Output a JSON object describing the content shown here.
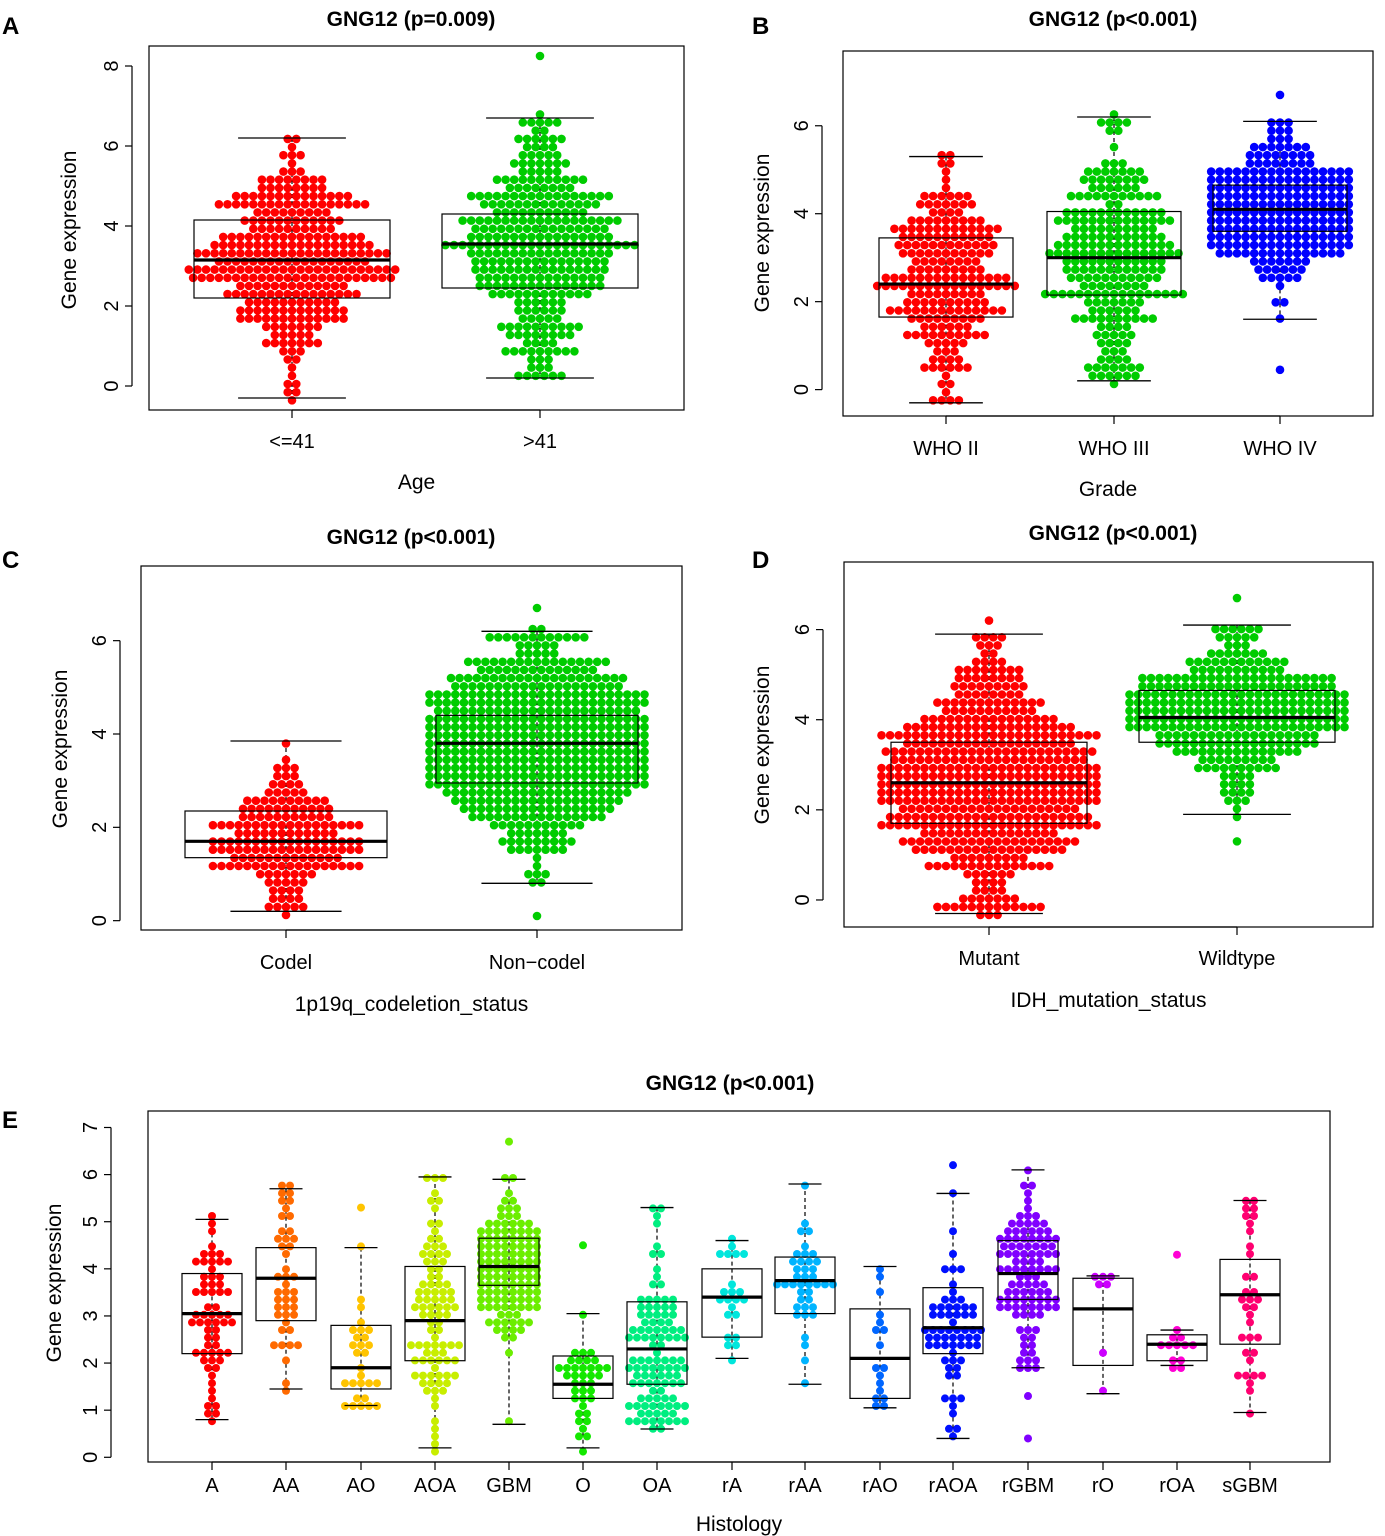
{
  "colors": {
    "red": "#ff0000",
    "green": "#00cc00",
    "blue": "#0000ff",
    "histology": [
      "#ff0000",
      "#ff6a00",
      "#ffc400",
      "#c8ee00",
      "#6cee00",
      "#14e800",
      "#00ee80",
      "#00e6dc",
      "#00b4ff",
      "#0066ff",
      "#0010ff",
      "#8000ff",
      "#cc00ff",
      "#ff00d4",
      "#ff0070"
    ]
  },
  "chart_data": [
    {
      "panel": "A",
      "type": "box-beeswarm",
      "title": "GNG12 (p=0.009)",
      "xlabel": "Age",
      "ylabel": "Gene expression",
      "ylim": [
        -0.6,
        8.5
      ],
      "yticks": [
        0,
        2,
        4,
        6,
        8
      ],
      "categories": [
        "<=41",
        ">41"
      ],
      "groups": [
        {
          "name": "<=41",
          "color": "red",
          "n": 310,
          "min": -0.3,
          "q1": 2.2,
          "median": 3.15,
          "q3": 4.15,
          "max": 6.2,
          "outliers": [],
          "band": [
            1.4,
            4.2
          ]
        },
        {
          "name": ">41",
          "color": "green",
          "n": 320,
          "min": 0.2,
          "q1": 2.45,
          "median": 3.55,
          "q3": 4.3,
          "max": 6.7,
          "outliers": [
            8.25
          ],
          "band": [
            1.6,
            4.35
          ]
        }
      ]
    },
    {
      "panel": "B",
      "type": "box-beeswarm",
      "title": "GNG12 (p<0.001)",
      "xlabel": "Grade",
      "ylabel": "Gene expression",
      "ylim": [
        -0.6,
        7.7
      ],
      "yticks": [
        0,
        2,
        4,
        6
      ],
      "categories": [
        "WHO II",
        "WHO III",
        "WHO IV"
      ],
      "groups": [
        {
          "name": "WHO II",
          "color": "red",
          "n": 215,
          "min": -0.3,
          "q1": 1.65,
          "median": 2.4,
          "q3": 3.45,
          "max": 5.3,
          "outliers": [],
          "band": [
            1.4,
            2.6
          ]
        },
        {
          "name": "WHO III",
          "color": "green",
          "n": 240,
          "min": 0.2,
          "q1": 2.15,
          "median": 3.0,
          "q3": 4.05,
          "max": 6.2,
          "outliers": [],
          "band": [
            1.5,
            4.1
          ]
        },
        {
          "name": "WHO IV",
          "color": "blue",
          "n": 320,
          "min": 1.6,
          "q1": 3.6,
          "median": 4.1,
          "q3": 4.65,
          "max": 6.1,
          "outliers": [
            6.7,
            0.45
          ],
          "band": [
            3.3,
            4.8
          ]
        }
      ]
    },
    {
      "panel": "C",
      "type": "box-beeswarm",
      "title": "GNG12 (p<0.001)",
      "xlabel": "1p19q_codeletion_status",
      "ylabel": "Gene expression",
      "ylim": [
        -0.2,
        7.6
      ],
      "yticks": [
        0,
        2,
        4,
        6
      ],
      "categories": [
        "Codel",
        "Non−codel"
      ],
      "groups": [
        {
          "name": "Codel",
          "color": "red",
          "n": 170,
          "min": 0.2,
          "q1": 1.35,
          "median": 1.7,
          "q3": 2.35,
          "max": 3.85,
          "outliers": [],
          "band": [
            1.4,
            1.8
          ]
        },
        {
          "name": "Non−codel",
          "color": "green",
          "n": 700,
          "min": 0.8,
          "q1": 2.95,
          "median": 3.8,
          "q3": 4.4,
          "max": 6.2,
          "outliers": [
            6.7,
            0.1
          ],
          "band": [
            2.9,
            4.4
          ]
        }
      ]
    },
    {
      "panel": "D",
      "type": "box-beeswarm",
      "title": "GNG12 (p<0.001)",
      "xlabel": "IDH_mutation_status",
      "ylabel": "Gene expression",
      "ylim": [
        -0.6,
        7.5
      ],
      "yticks": [
        0,
        2,
        4,
        6
      ],
      "categories": [
        "Mutant",
        "Wildtype"
      ],
      "groups": [
        {
          "name": "Mutant",
          "color": "red",
          "n": 560,
          "min": -0.3,
          "q1": 1.7,
          "median": 2.6,
          "q3": 3.5,
          "max": 5.9,
          "outliers": [
            6.2
          ],
          "band": [
            1.5,
            3.4
          ]
        },
        {
          "name": "Wildtype",
          "color": "green",
          "n": 330,
          "min": 1.9,
          "q1": 3.5,
          "median": 4.05,
          "q3": 4.65,
          "max": 6.1,
          "outliers": [
            6.7,
            1.3
          ],
          "band": [
            3.8,
            4.4
          ]
        }
      ]
    },
    {
      "panel": "E",
      "type": "box-beeswarm",
      "title": "GNG12 (p<0.001)",
      "xlabel": "Histology",
      "ylabel": "Gene expression",
      "ylim": [
        -0.1,
        7.35
      ],
      "yticks": [
        0,
        1,
        2,
        3,
        4,
        5,
        6,
        7
      ],
      "categories": [
        "A",
        "AA",
        "AO",
        "AOA",
        "GBM",
        "O",
        "OA",
        "rA",
        "rAA",
        "rAO",
        "rAOA",
        "rGBM",
        "rO",
        "rOA",
        "sGBM"
      ],
      "groups": [
        {
          "name": "A",
          "n": 60,
          "min": 0.8,
          "q1": 2.2,
          "median": 3.05,
          "q3": 3.9,
          "max": 5.05,
          "outliers": []
        },
        {
          "name": "AA",
          "n": 42,
          "min": 1.45,
          "q1": 2.9,
          "median": 3.8,
          "q3": 4.45,
          "max": 5.7,
          "outliers": []
        },
        {
          "name": "AO",
          "n": 26,
          "min": 1.1,
          "q1": 1.45,
          "median": 1.9,
          "q3": 2.8,
          "max": 4.45,
          "outliers": [
            5.3
          ]
        },
        {
          "name": "AOA",
          "n": 90,
          "min": 0.2,
          "q1": 2.05,
          "median": 2.9,
          "q3": 4.05,
          "max": 5.95,
          "outliers": []
        },
        {
          "name": "GBM",
          "n": 200,
          "min": 0.7,
          "q1": 3.65,
          "median": 4.05,
          "q3": 4.65,
          "max": 5.9,
          "outliers": [
            6.7
          ]
        },
        {
          "name": "O",
          "n": 36,
          "min": 0.2,
          "q1": 1.25,
          "median": 1.55,
          "q3": 2.15,
          "max": 3.05,
          "outliers": [
            4.5
          ]
        },
        {
          "name": "OA",
          "n": 105,
          "min": 0.6,
          "q1": 1.55,
          "median": 2.3,
          "q3": 3.3,
          "max": 5.3,
          "outliers": []
        },
        {
          "name": "rA",
          "n": 20,
          "min": 2.1,
          "q1": 2.55,
          "median": 3.4,
          "q3": 4.0,
          "max": 4.6,
          "outliers": []
        },
        {
          "name": "rAA",
          "n": 40,
          "min": 1.55,
          "q1": 3.05,
          "median": 3.75,
          "q3": 4.25,
          "max": 5.8,
          "outliers": []
        },
        {
          "name": "rAO",
          "n": 15,
          "min": 1.05,
          "q1": 1.25,
          "median": 2.1,
          "q3": 3.15,
          "max": 4.05,
          "outliers": []
        },
        {
          "name": "rAOA",
          "n": 60,
          "min": 0.4,
          "q1": 2.2,
          "median": 2.75,
          "q3": 3.6,
          "max": 5.6,
          "outliers": [
            6.2
          ]
        },
        {
          "name": "rGBM",
          "n": 110,
          "min": 1.9,
          "q1": 3.35,
          "median": 3.9,
          "q3": 4.6,
          "max": 6.1,
          "outliers": [
            1.3,
            0.4
          ]
        },
        {
          "name": "rO",
          "n": 5,
          "min": 1.35,
          "q1": 1.95,
          "median": 3.15,
          "q3": 3.8,
          "max": 3.85,
          "outliers": []
        },
        {
          "name": "rOA",
          "n": 10,
          "min": 1.95,
          "q1": 2.05,
          "median": 2.4,
          "q3": 2.6,
          "max": 2.7,
          "outliers": [
            4.3
          ]
        },
        {
          "name": "sGBM",
          "n": 32,
          "min": 0.95,
          "q1": 2.4,
          "median": 3.45,
          "q3": 4.2,
          "max": 5.45,
          "outliers": []
        }
      ]
    }
  ]
}
